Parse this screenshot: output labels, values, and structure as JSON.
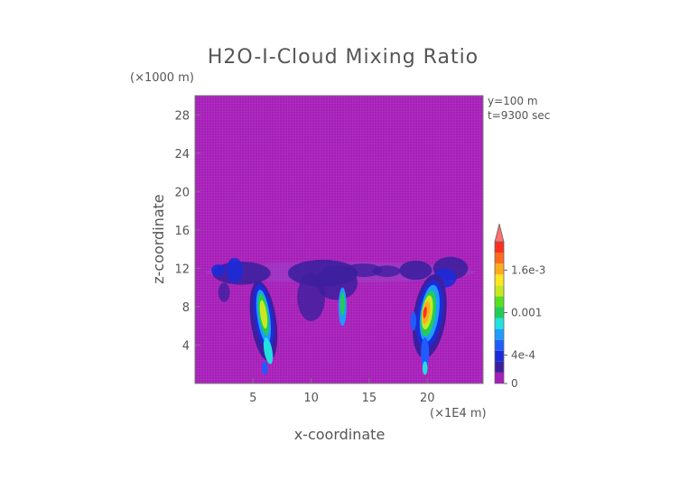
{
  "chart_data": {
    "type": "heatmap",
    "title": "H2O-I-Cloud Mixing Ratio",
    "xlabel": "x-coordinate",
    "ylabel": "z-coordinate",
    "x_unit": "(×1E4 m)",
    "y_unit": "(×1000 m)",
    "xlim": [
      0,
      24.8
    ],
    "ylim": [
      0,
      30
    ],
    "x_ticks": [
      5,
      10,
      15,
      20
    ],
    "y_ticks": [
      4,
      8,
      12,
      16,
      20,
      24,
      28
    ],
    "annotations": [
      "y=100 m",
      "t=9300 sec"
    ],
    "colorbar": {
      "range": [
        0,
        0.002
      ],
      "tick_values": [
        0,
        0.0004,
        0.001,
        0.0016
      ],
      "tick_labels": [
        "0",
        "4e-4",
        "0.001",
        "1.6e-3"
      ],
      "colors": [
        "#a61fb8",
        "#3d1f9e",
        "#1b2bd8",
        "#1f5cff",
        "#1f9cff",
        "#22e0e0",
        "#22cc55",
        "#55e022",
        "#c8e822",
        "#ffe61f",
        "#ffaa1f",
        "#ff6a1f",
        "#ff2f1f"
      ],
      "over_color": "#ff7070"
    },
    "background_color": "#a61fb8"
  }
}
